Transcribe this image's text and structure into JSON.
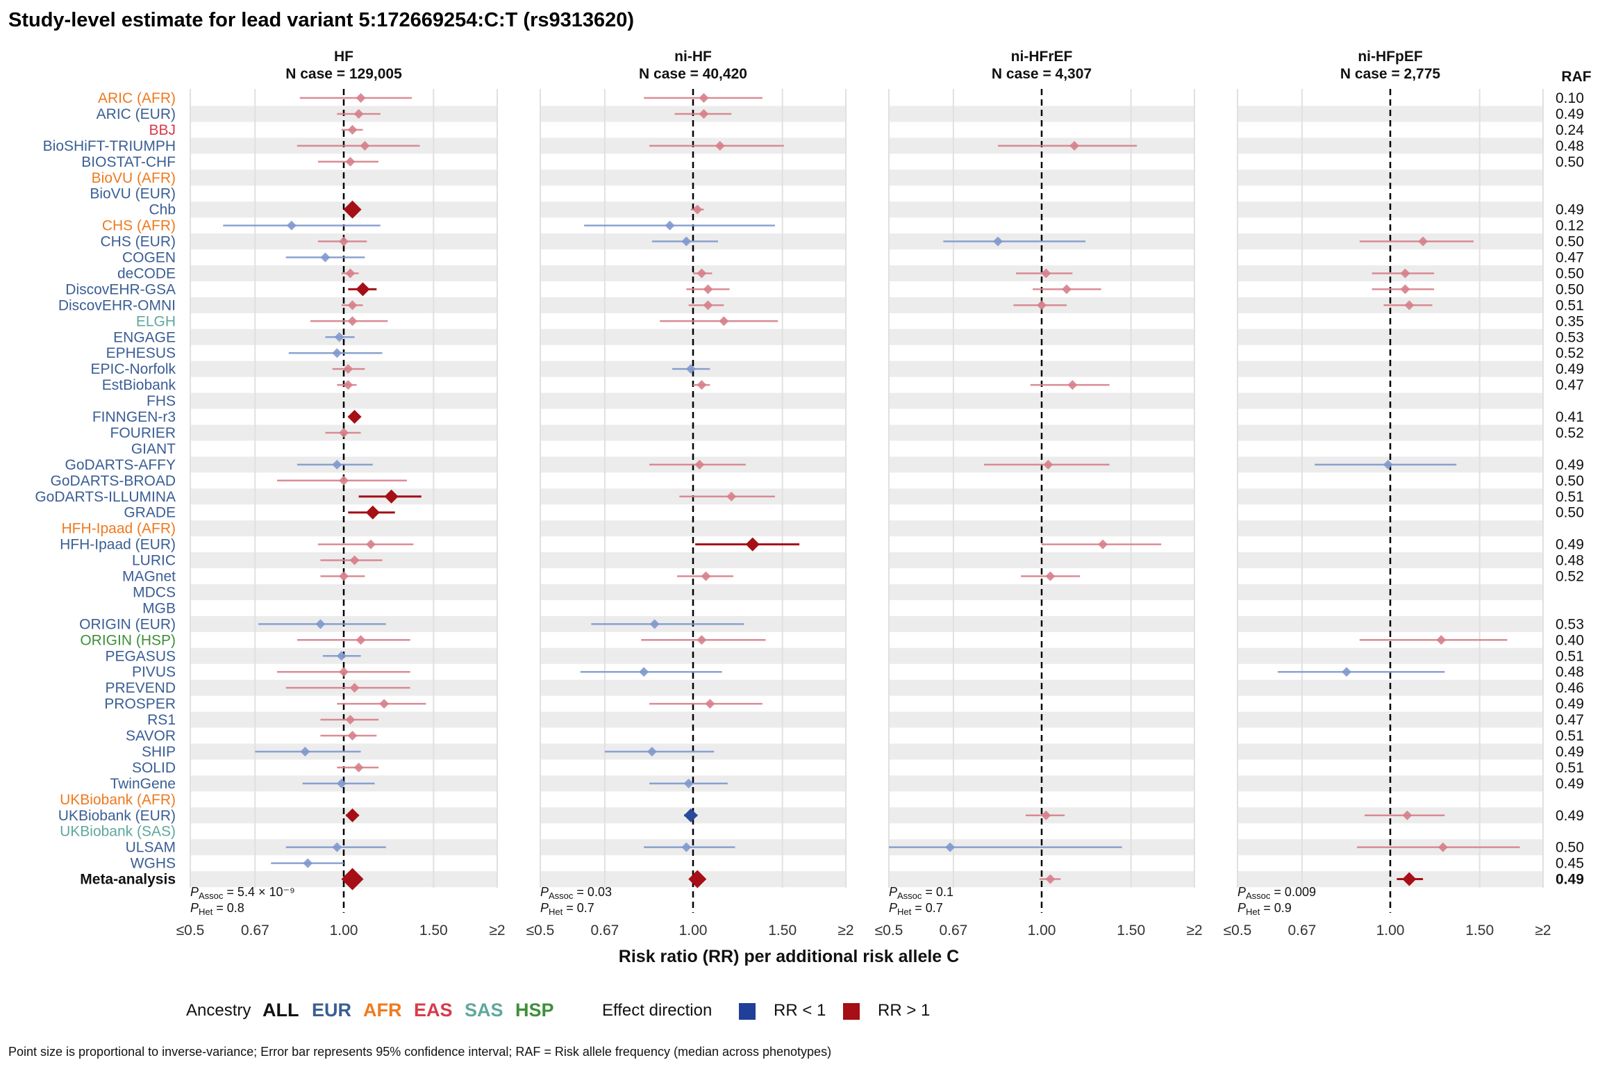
{
  "title": "Study-level estimate for lead variant 5:172669254:C:T (rs9313620)",
  "x_axis_label": "Risk ratio (RR) per additional risk allele C",
  "raf_header": "RAF",
  "colors": {
    "ALL": "#111111",
    "EUR": "#3A5E94",
    "AFR": "#EE7A20",
    "EAS": "#D83A4A",
    "SAS": "#5FA89C",
    "HSP": "#3E8F3A",
    "below": "#1F3F99",
    "above": "#A50F15"
  },
  "legend": {
    "ancestry_title": "Ancestry",
    "ancestries": [
      "ALL",
      "EUR",
      "AFR",
      "EAS",
      "SAS",
      "HSP"
    ],
    "effect_title": "Effect direction",
    "effects": [
      "RR < 1",
      "RR > 1"
    ]
  },
  "footnote": "Point size is proportional to inverse-variance; Error bar represents 95% confidence interval; RAF = Risk allele frequency (median across phenotypes)",
  "chart_data": {
    "type": "forest",
    "scale": "log",
    "xlim": [
      0.5,
      2
    ],
    "reference_line": 1.0,
    "tick_values": [
      0.5,
      0.67,
      1.0,
      1.5,
      2.0
    ],
    "tick_labels": [
      "≤0.5",
      "0.67",
      "1.00",
      "1.50",
      "≥2"
    ],
    "studies": [
      {
        "name": "ARIC (AFR)",
        "ancestry": "AFR",
        "raf": "0.10"
      },
      {
        "name": "ARIC (EUR)",
        "ancestry": "EUR",
        "raf": "0.49"
      },
      {
        "name": "BBJ",
        "ancestry": "EAS",
        "raf": "0.24"
      },
      {
        "name": "BioSHiFT-TRIUMPH",
        "ancestry": "EUR",
        "raf": "0.48"
      },
      {
        "name": "BIOSTAT-CHF",
        "ancestry": "EUR",
        "raf": "0.50"
      },
      {
        "name": "BioVU (AFR)",
        "ancestry": "AFR",
        "raf": ""
      },
      {
        "name": "BioVU (EUR)",
        "ancestry": "EUR",
        "raf": ""
      },
      {
        "name": "Chb",
        "ancestry": "EUR",
        "raf": "0.49"
      },
      {
        "name": "CHS (AFR)",
        "ancestry": "AFR",
        "raf": "0.12"
      },
      {
        "name": "CHS (EUR)",
        "ancestry": "EUR",
        "raf": "0.50"
      },
      {
        "name": "COGEN",
        "ancestry": "EUR",
        "raf": "0.47"
      },
      {
        "name": "deCODE",
        "ancestry": "EUR",
        "raf": "0.50"
      },
      {
        "name": "DiscovEHR-GSA",
        "ancestry": "EUR",
        "raf": "0.50"
      },
      {
        "name": "DiscovEHR-OMNI",
        "ancestry": "EUR",
        "raf": "0.51"
      },
      {
        "name": "ELGH",
        "ancestry": "SAS",
        "raf": "0.35"
      },
      {
        "name": "ENGAGE",
        "ancestry": "EUR",
        "raf": "0.53"
      },
      {
        "name": "EPHESUS",
        "ancestry": "EUR",
        "raf": "0.52"
      },
      {
        "name": "EPIC-Norfolk",
        "ancestry": "EUR",
        "raf": "0.49"
      },
      {
        "name": "EstBiobank",
        "ancestry": "EUR",
        "raf": "0.47"
      },
      {
        "name": "FHS",
        "ancestry": "EUR",
        "raf": ""
      },
      {
        "name": "FINNGEN-r3",
        "ancestry": "EUR",
        "raf": "0.41"
      },
      {
        "name": "FOURIER",
        "ancestry": "EUR",
        "raf": "0.52"
      },
      {
        "name": "GIANT",
        "ancestry": "EUR",
        "raf": ""
      },
      {
        "name": "GoDARTS-AFFY",
        "ancestry": "EUR",
        "raf": "0.49"
      },
      {
        "name": "GoDARTS-BROAD",
        "ancestry": "EUR",
        "raf": "0.50"
      },
      {
        "name": "GoDARTS-ILLUMINA",
        "ancestry": "EUR",
        "raf": "0.51"
      },
      {
        "name": "GRADE",
        "ancestry": "EUR",
        "raf": "0.50"
      },
      {
        "name": "HFH-Ipaad (AFR)",
        "ancestry": "AFR",
        "raf": ""
      },
      {
        "name": "HFH-Ipaad (EUR)",
        "ancestry": "EUR",
        "raf": "0.49"
      },
      {
        "name": "LURIC",
        "ancestry": "EUR",
        "raf": "0.48"
      },
      {
        "name": "MAGnet",
        "ancestry": "EUR",
        "raf": "0.52"
      },
      {
        "name": "MDCS",
        "ancestry": "EUR",
        "raf": ""
      },
      {
        "name": "MGB",
        "ancestry": "EUR",
        "raf": ""
      },
      {
        "name": "ORIGIN (EUR)",
        "ancestry": "EUR",
        "raf": "0.53"
      },
      {
        "name": "ORIGIN (HSP)",
        "ancestry": "HSP",
        "raf": "0.40"
      },
      {
        "name": "PEGASUS",
        "ancestry": "EUR",
        "raf": "0.51"
      },
      {
        "name": "PIVUS",
        "ancestry": "EUR",
        "raf": "0.48"
      },
      {
        "name": "PREVEND",
        "ancestry": "EUR",
        "raf": "0.46"
      },
      {
        "name": "PROSPER",
        "ancestry": "EUR",
        "raf": "0.49"
      },
      {
        "name": "RS1",
        "ancestry": "EUR",
        "raf": "0.47"
      },
      {
        "name": "SAVOR",
        "ancestry": "EUR",
        "raf": "0.51"
      },
      {
        "name": "SHIP",
        "ancestry": "EUR",
        "raf": "0.49"
      },
      {
        "name": "SOLID",
        "ancestry": "EUR",
        "raf": "0.51"
      },
      {
        "name": "TwinGene",
        "ancestry": "EUR",
        "raf": "0.49"
      },
      {
        "name": "UKBiobank (AFR)",
        "ancestry": "AFR",
        "raf": ""
      },
      {
        "name": "UKBiobank (EUR)",
        "ancestry": "EUR",
        "raf": "0.49"
      },
      {
        "name": "UKBiobank (SAS)",
        "ancestry": "SAS",
        "raf": ""
      },
      {
        "name": "ULSAM",
        "ancestry": "EUR",
        "raf": "0.50"
      },
      {
        "name": "WGHS",
        "ancestry": "EUR",
        "raf": "0.45"
      },
      {
        "name": "Meta-analysis",
        "ancestry": "ALL",
        "raf": "0.49"
      }
    ],
    "panels": [
      {
        "title": "HF",
        "n_case": "N case = 129,005",
        "p_assoc": "= 5.4 × 10⁻⁹",
        "p_het": "= 0.8",
        "estimates": [
          {
            "row": 0,
            "rr": 1.08,
            "lo": 0.82,
            "hi": 1.36,
            "size": 1
          },
          {
            "row": 1,
            "rr": 1.07,
            "lo": 0.97,
            "hi": 1.18,
            "size": 1
          },
          {
            "row": 2,
            "rr": 1.04,
            "lo": 0.99,
            "hi": 1.09,
            "size": 1
          },
          {
            "row": 3,
            "rr": 1.1,
            "lo": 0.81,
            "hi": 1.41,
            "size": 1
          },
          {
            "row": 4,
            "rr": 1.03,
            "lo": 0.89,
            "hi": 1.17,
            "size": 1
          },
          {
            "row": 7,
            "rr": 1.04,
            "lo": 1.02,
            "hi": 1.06,
            "size": 3
          },
          {
            "row": 8,
            "rr": 0.79,
            "lo": 0.58,
            "hi": 1.18,
            "size": 1
          },
          {
            "row": 9,
            "rr": 1.0,
            "lo": 0.89,
            "hi": 1.11,
            "size": 1
          },
          {
            "row": 10,
            "rr": 0.92,
            "lo": 0.77,
            "hi": 1.1,
            "size": 1
          },
          {
            "row": 11,
            "rr": 1.03,
            "lo": 0.99,
            "hi": 1.07,
            "size": 1
          },
          {
            "row": 12,
            "rr": 1.09,
            "lo": 1.02,
            "hi": 1.16,
            "size": 2
          },
          {
            "row": 13,
            "rr": 1.04,
            "lo": 0.99,
            "hi": 1.09,
            "size": 1
          },
          {
            "row": 14,
            "rr": 1.04,
            "lo": 0.86,
            "hi": 1.22,
            "size": 1
          },
          {
            "row": 15,
            "rr": 0.98,
            "lo": 0.92,
            "hi": 1.05,
            "size": 1
          },
          {
            "row": 16,
            "rr": 0.97,
            "lo": 0.78,
            "hi": 1.19,
            "size": 1
          },
          {
            "row": 17,
            "rr": 1.02,
            "lo": 0.95,
            "hi": 1.1,
            "size": 1
          },
          {
            "row": 18,
            "rr": 1.02,
            "lo": 0.97,
            "hi": 1.06,
            "size": 1
          },
          {
            "row": 20,
            "rr": 1.05,
            "lo": 1.02,
            "hi": 1.07,
            "size": 2
          },
          {
            "row": 21,
            "rr": 1.0,
            "lo": 0.92,
            "hi": 1.08,
            "size": 1
          },
          {
            "row": 23,
            "rr": 0.97,
            "lo": 0.81,
            "hi": 1.14,
            "size": 1
          },
          {
            "row": 24,
            "rr": 1.0,
            "lo": 0.74,
            "hi": 1.33,
            "size": 1
          },
          {
            "row": 25,
            "rr": 1.24,
            "lo": 1.07,
            "hi": 1.42,
            "size": 2
          },
          {
            "row": 26,
            "rr": 1.14,
            "lo": 1.02,
            "hi": 1.26,
            "size": 2
          },
          {
            "row": 28,
            "rr": 1.13,
            "lo": 0.89,
            "hi": 1.37,
            "size": 1
          },
          {
            "row": 29,
            "rr": 1.05,
            "lo": 0.9,
            "hi": 1.19,
            "size": 1
          },
          {
            "row": 30,
            "rr": 1.0,
            "lo": 0.9,
            "hi": 1.1,
            "size": 1
          },
          {
            "row": 33,
            "rr": 0.9,
            "lo": 0.68,
            "hi": 1.21,
            "size": 1
          },
          {
            "row": 34,
            "rr": 1.08,
            "lo": 0.81,
            "hi": 1.35,
            "size": 1
          },
          {
            "row": 35,
            "rr": 0.99,
            "lo": 0.91,
            "hi": 1.08,
            "size": 1
          },
          {
            "row": 36,
            "rr": 1.0,
            "lo": 0.74,
            "hi": 1.35,
            "size": 1
          },
          {
            "row": 37,
            "rr": 1.05,
            "lo": 0.77,
            "hi": 1.35,
            "size": 1
          },
          {
            "row": 38,
            "rr": 1.2,
            "lo": 0.97,
            "hi": 1.45,
            "size": 1
          },
          {
            "row": 39,
            "rr": 1.03,
            "lo": 0.9,
            "hi": 1.17,
            "size": 1
          },
          {
            "row": 40,
            "rr": 1.04,
            "lo": 0.9,
            "hi": 1.16,
            "size": 1
          },
          {
            "row": 41,
            "rr": 0.84,
            "lo": 0.67,
            "hi": 1.08,
            "size": 1
          },
          {
            "row": 42,
            "rr": 1.07,
            "lo": 0.97,
            "hi": 1.17,
            "size": 1
          },
          {
            "row": 43,
            "rr": 0.99,
            "lo": 0.83,
            "hi": 1.15,
            "size": 1
          },
          {
            "row": 45,
            "rr": 1.04,
            "lo": 1.01,
            "hi": 1.07,
            "size": 2
          },
          {
            "row": 47,
            "rr": 0.97,
            "lo": 0.77,
            "hi": 1.21,
            "size": 1
          },
          {
            "row": 48,
            "rr": 0.85,
            "lo": 0.72,
            "hi": 1.0,
            "size": 1
          },
          {
            "row": 49,
            "rr": 1.04,
            "lo": 1.03,
            "hi": 1.05,
            "size": 4
          }
        ]
      },
      {
        "title": "ni-HF",
        "n_case": "N case = 40,420",
        "p_assoc": "= 0.03",
        "p_het": "= 0.7",
        "estimates": [
          {
            "row": 0,
            "rr": 1.05,
            "lo": 0.8,
            "hi": 1.37,
            "size": 1
          },
          {
            "row": 1,
            "rr": 1.05,
            "lo": 0.92,
            "hi": 1.19,
            "size": 1
          },
          {
            "row": 3,
            "rr": 1.13,
            "lo": 0.82,
            "hi": 1.51,
            "size": 1
          },
          {
            "row": 7,
            "rr": 1.02,
            "lo": 0.99,
            "hi": 1.05,
            "size": 1
          },
          {
            "row": 8,
            "rr": 0.9,
            "lo": 0.61,
            "hi": 1.45,
            "size": 1
          },
          {
            "row": 9,
            "rr": 0.97,
            "lo": 0.83,
            "hi": 1.12,
            "size": 1
          },
          {
            "row": 11,
            "rr": 1.04,
            "lo": 1.0,
            "hi": 1.09,
            "size": 1
          },
          {
            "row": 12,
            "rr": 1.07,
            "lo": 0.97,
            "hi": 1.18,
            "size": 1
          },
          {
            "row": 13,
            "rr": 1.07,
            "lo": 0.98,
            "hi": 1.15,
            "size": 1
          },
          {
            "row": 14,
            "rr": 1.15,
            "lo": 0.86,
            "hi": 1.47,
            "size": 1
          },
          {
            "row": 17,
            "rr": 0.99,
            "lo": 0.91,
            "hi": 1.08,
            "size": 1
          },
          {
            "row": 18,
            "rr": 1.04,
            "lo": 1.0,
            "hi": 1.08,
            "size": 1
          },
          {
            "row": 23,
            "rr": 1.03,
            "lo": 0.82,
            "hi": 1.27,
            "size": 1
          },
          {
            "row": 25,
            "rr": 1.19,
            "lo": 0.94,
            "hi": 1.45,
            "size": 1
          },
          {
            "row": 28,
            "rr": 1.31,
            "lo": 1.01,
            "hi": 1.62,
            "size": 2
          },
          {
            "row": 30,
            "rr": 1.06,
            "lo": 0.93,
            "hi": 1.2,
            "size": 1
          },
          {
            "row": 33,
            "rr": 0.84,
            "lo": 0.63,
            "hi": 1.26,
            "size": 1
          },
          {
            "row": 34,
            "rr": 1.04,
            "lo": 0.79,
            "hi": 1.39,
            "size": 1
          },
          {
            "row": 36,
            "rr": 0.8,
            "lo": 0.6,
            "hi": 1.14,
            "size": 1
          },
          {
            "row": 38,
            "rr": 1.08,
            "lo": 0.82,
            "hi": 1.37,
            "size": 1
          },
          {
            "row": 41,
            "rr": 0.83,
            "lo": 0.67,
            "hi": 1.1,
            "size": 1
          },
          {
            "row": 43,
            "rr": 0.98,
            "lo": 0.82,
            "hi": 1.17,
            "size": 1
          },
          {
            "row": 45,
            "rr": 0.99,
            "lo": 0.96,
            "hi": 1.02,
            "size": 2
          },
          {
            "row": 47,
            "rr": 0.97,
            "lo": 0.8,
            "hi": 1.21,
            "size": 1
          },
          {
            "row": 49,
            "rr": 1.02,
            "lo": 1.0,
            "hi": 1.04,
            "size": 3
          }
        ]
      },
      {
        "title": "ni-HFrEF",
        "n_case": "N case = 4,307",
        "p_assoc": "= 0.1",
        "p_het": "= 0.7",
        "estimates": [
          {
            "row": 3,
            "rr": 1.16,
            "lo": 0.82,
            "hi": 1.54,
            "size": 1
          },
          {
            "row": 9,
            "rr": 0.82,
            "lo": 0.64,
            "hi": 1.22,
            "size": 1
          },
          {
            "row": 11,
            "rr": 1.02,
            "lo": 0.89,
            "hi": 1.15,
            "size": 1
          },
          {
            "row": 12,
            "rr": 1.12,
            "lo": 0.96,
            "hi": 1.31,
            "size": 1
          },
          {
            "row": 13,
            "rr": 1.0,
            "lo": 0.88,
            "hi": 1.12,
            "size": 1
          },
          {
            "row": 18,
            "rr": 1.15,
            "lo": 0.95,
            "hi": 1.36,
            "size": 1
          },
          {
            "row": 23,
            "rr": 1.03,
            "lo": 0.77,
            "hi": 1.36,
            "size": 1
          },
          {
            "row": 28,
            "rr": 1.32,
            "lo": 1.0,
            "hi": 1.72,
            "size": 1
          },
          {
            "row": 30,
            "rr": 1.04,
            "lo": 0.91,
            "hi": 1.19,
            "size": 1
          },
          {
            "row": 47,
            "rr": 0.66,
            "lo": 0.5,
            "hi": 1.44,
            "size": 1
          },
          {
            "row": 45,
            "rr": 1.02,
            "lo": 0.93,
            "hi": 1.11,
            "size": 1
          },
          {
            "row": 49,
            "rr": 1.04,
            "lo": 0.99,
            "hi": 1.09,
            "size": 1
          }
        ]
      },
      {
        "title": "ni-HFpEF",
        "n_case": "N case = 2,775",
        "p_assoc": "= 0.009",
        "p_het": "= 0.9",
        "estimates": [
          {
            "row": 9,
            "rr": 1.16,
            "lo": 0.87,
            "hi": 1.46,
            "size": 1
          },
          {
            "row": 11,
            "rr": 1.07,
            "lo": 0.92,
            "hi": 1.22,
            "size": 1
          },
          {
            "row": 12,
            "rr": 1.07,
            "lo": 0.92,
            "hi": 1.22,
            "size": 1
          },
          {
            "row": 13,
            "rr": 1.09,
            "lo": 0.97,
            "hi": 1.21,
            "size": 1
          },
          {
            "row": 23,
            "rr": 0.99,
            "lo": 0.71,
            "hi": 1.35,
            "size": 1
          },
          {
            "row": 34,
            "rr": 1.26,
            "lo": 0.87,
            "hi": 1.7,
            "size": 1
          },
          {
            "row": 36,
            "rr": 0.82,
            "lo": 0.6,
            "hi": 1.28,
            "size": 1
          },
          {
            "row": 45,
            "rr": 1.08,
            "lo": 0.89,
            "hi": 1.28,
            "size": 1
          },
          {
            "row": 47,
            "rr": 1.27,
            "lo": 0.86,
            "hi": 1.8,
            "size": 1
          },
          {
            "row": 49,
            "rr": 1.09,
            "lo": 1.03,
            "hi": 1.16,
            "size": 2
          }
        ]
      }
    ]
  }
}
